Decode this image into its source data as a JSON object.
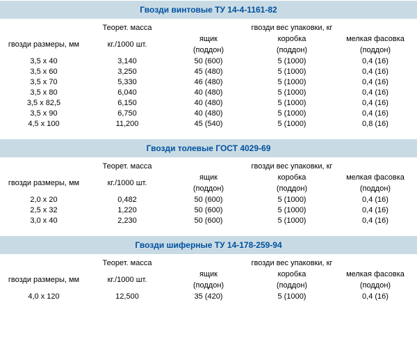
{
  "labels": {
    "sizes": "гвозди размеры, мм",
    "mass_line1": "Теорет. масса",
    "mass_line2": "кг./1000 шт.",
    "pack_header": "гвозди вес упаковки, кг",
    "box_line1": "ящик",
    "box_line2": "(поддон)",
    "carton_line1": "коробка",
    "carton_line2": "(поддон)",
    "small_line1": "мелкая фасовка",
    "small_line2": "(поддон)"
  },
  "sections": [
    {
      "title": "Гвозди винтовые ТУ 14-4-1161-82",
      "rows": [
        {
          "size": "3,5 x 40",
          "mass": "3,140",
          "box": "50 (600)",
          "carton": "5 (1000)",
          "small": "0,4 (16)"
        },
        {
          "size": "3,5 x 60",
          "mass": "3,250",
          "box": "45 (480)",
          "carton": "5 (1000)",
          "small": "0,4 (16)"
        },
        {
          "size": "3,5 x 70",
          "mass": "5,330",
          "box": "46 (480)",
          "carton": "5 (1000)",
          "small": "0,4 (16)"
        },
        {
          "size": "3,5 x 80",
          "mass": "6,040",
          "box": "40 (480)",
          "carton": "5 (1000)",
          "small": "0,4 (16)"
        },
        {
          "size": "3,5 x 82,5",
          "mass": "6,150",
          "box": "40 (480)",
          "carton": "5 (1000)",
          "small": "0,4 (16)"
        },
        {
          "size": "3,5 x 90",
          "mass": "6,750",
          "box": "40 (480)",
          "carton": "5 (1000)",
          "small": "0,4 (16)"
        },
        {
          "size": "4,5 x 100",
          "mass": "11,200",
          "box": "45 (540)",
          "carton": "5 (1000)",
          "small": "0,8 (16)"
        }
      ]
    },
    {
      "title": "Гвозди толевые   ГОСТ 4029-69",
      "rows": [
        {
          "size": "2,0 x 20",
          "mass": "0,482",
          "box": "50 (600)",
          "carton": "5 (1000)",
          "small": "0,4 (16)"
        },
        {
          "size": "2,5 x 32",
          "mass": "1,220",
          "box": "50 (600)",
          "carton": "5 (1000)",
          "small": "0,4 (16)"
        },
        {
          "size": "3,0 x 40",
          "mass": "2,230",
          "box": "50 (600)",
          "carton": "5 (1000)",
          "small": "0,4 (16)"
        }
      ]
    },
    {
      "title": "Гвозди шиферные ТУ 14-178-259-94",
      "rows": [
        {
          "size": "4,0 x 120",
          "mass": "12,500",
          "box": "35 (420)",
          "carton": "5 (1000)",
          "small": "0,4 (16)"
        }
      ]
    }
  ],
  "colors": {
    "title_bg": "#c8dbe4",
    "title_fg": "#0050a0"
  }
}
